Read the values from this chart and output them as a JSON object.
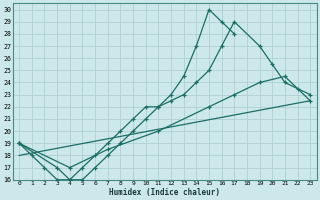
{
  "xlabel": "Humidex (Indice chaleur)",
  "bg_color": "#cce8eb",
  "grid_color": "#b0d0d4",
  "line_color": "#1a6e65",
  "xlim": [
    -0.5,
    23.5
  ],
  "ylim": [
    16,
    30.5
  ],
  "xticks": [
    0,
    1,
    2,
    3,
    4,
    5,
    6,
    7,
    8,
    9,
    10,
    11,
    12,
    13,
    14,
    15,
    16,
    17,
    18,
    19,
    20,
    21,
    22,
    23
  ],
  "yticks": [
    16,
    17,
    18,
    19,
    20,
    21,
    22,
    23,
    24,
    25,
    26,
    27,
    28,
    29,
    30
  ],
  "curve1_x": [
    0,
    1,
    2,
    3,
    4,
    5,
    6,
    7,
    8,
    9,
    10,
    11,
    12,
    13,
    14,
    15,
    16,
    17
  ],
  "curve1_y": [
    19,
    18,
    17,
    16,
    16,
    17,
    18,
    19,
    20,
    21,
    22,
    22,
    23,
    24.5,
    27,
    30,
    29,
    28
  ],
  "curve2_x": [
    0,
    3,
    4,
    5,
    6,
    7,
    8,
    9,
    10,
    11,
    12,
    13,
    14,
    15,
    16,
    17,
    19,
    20,
    21,
    22,
    23
  ],
  "curve2_y": [
    19,
    17,
    16,
    16,
    17,
    18,
    19,
    20,
    21,
    22,
    22.5,
    23,
    24,
    25,
    27,
    29,
    27,
    25.5,
    24,
    23.5,
    23
  ],
  "curve3_x": [
    0,
    4,
    7,
    11,
    15,
    17,
    19,
    21,
    23
  ],
  "curve3_y": [
    19,
    17,
    18.5,
    20,
    22,
    23,
    24,
    24.5,
    22.5
  ],
  "curve4_x": [
    0,
    23
  ],
  "curve4_y": [
    18,
    22.5
  ]
}
